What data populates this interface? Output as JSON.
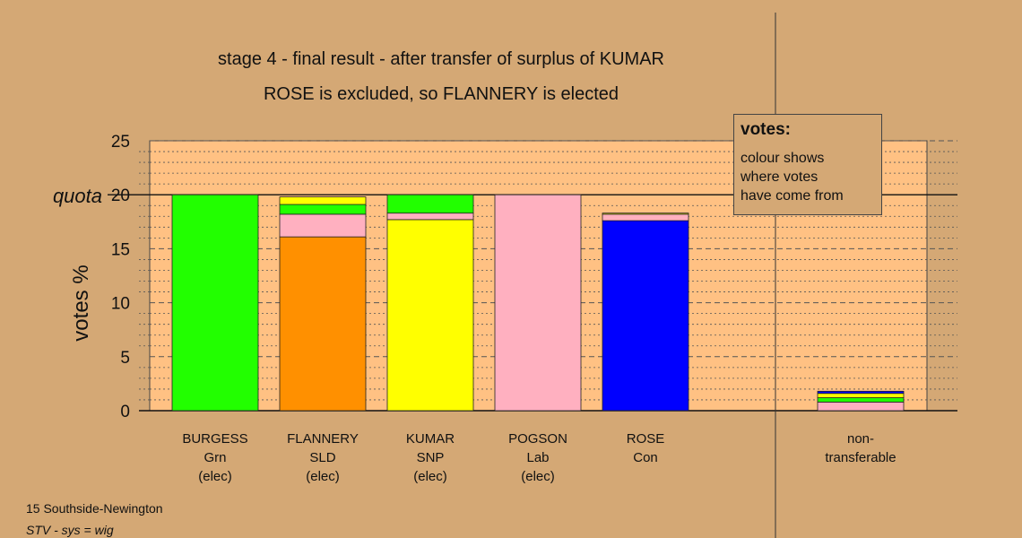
{
  "chart_data": {
    "type": "bar",
    "stacked": true,
    "title": "stage 4 - final result - after transfer of surplus of KUMAR",
    "subtitle": "ROSE is excluded, so FLANNERY is elected",
    "ylabel": "votes %",
    "ylim": [
      0,
      25
    ],
    "yticks": [
      "0",
      "5",
      "10",
      "15",
      "20",
      "25"
    ],
    "quota": {
      "value": 20,
      "label": "quota"
    },
    "grid": "dotted lines every 1%, dashed lines every 5%",
    "colors": {
      "Grn": "#22ff00",
      "SLD": "#ff9000",
      "SNP": "#ffff00",
      "Lab": "#ffb0c0",
      "Con": "#0000ff",
      "plot_bg": "#ffc183",
      "page_bg": "#d4a875"
    },
    "candidates": [
      {
        "name": "BURGESS",
        "party": "Grn",
        "status": "(elec)",
        "segments": [
          {
            "from": "Grn",
            "value": 20.0
          }
        ]
      },
      {
        "name": "FLANNERY",
        "party": "SLD",
        "status": "(elec)",
        "segments": [
          {
            "from": "SLD",
            "value": 16.1
          },
          {
            "from": "Lab",
            "value": 2.1
          },
          {
            "from": "Grn",
            "value": 0.9
          },
          {
            "from": "SNP",
            "value": 0.7
          }
        ]
      },
      {
        "name": "KUMAR",
        "party": "SNP",
        "status": "(elec)",
        "segments": [
          {
            "from": "SNP",
            "value": 17.7
          },
          {
            "from": "Lab",
            "value": 0.6
          },
          {
            "from": "Grn",
            "value": 1.7
          }
        ]
      },
      {
        "name": "POGSON",
        "party": "Lab",
        "status": "(elec)",
        "segments": [
          {
            "from": "Lab",
            "value": 20.0
          }
        ]
      },
      {
        "name": "ROSE",
        "party": "Con",
        "status": "",
        "segments": [
          {
            "from": "Con",
            "value": 17.6
          },
          {
            "from": "Lab",
            "value": 0.6
          },
          {
            "from": "SNP",
            "value": 0.1
          }
        ]
      }
    ],
    "nontransferable": {
      "label_line1": "non-",
      "label_line2": "transferable",
      "segments": [
        {
          "from": "Lab",
          "value": 0.8
        },
        {
          "from": "Grn",
          "value": 0.4
        },
        {
          "from": "SNP",
          "value": 0.4
        },
        {
          "from": "Con",
          "value": 0.2
        }
      ]
    }
  },
  "legend": {
    "title": "votes:",
    "line1": "colour shows",
    "line2": "where votes",
    "line3": "have come from"
  },
  "footer": {
    "line1": "15 Southside-Newington",
    "line2": "STV - sys = wig"
  }
}
